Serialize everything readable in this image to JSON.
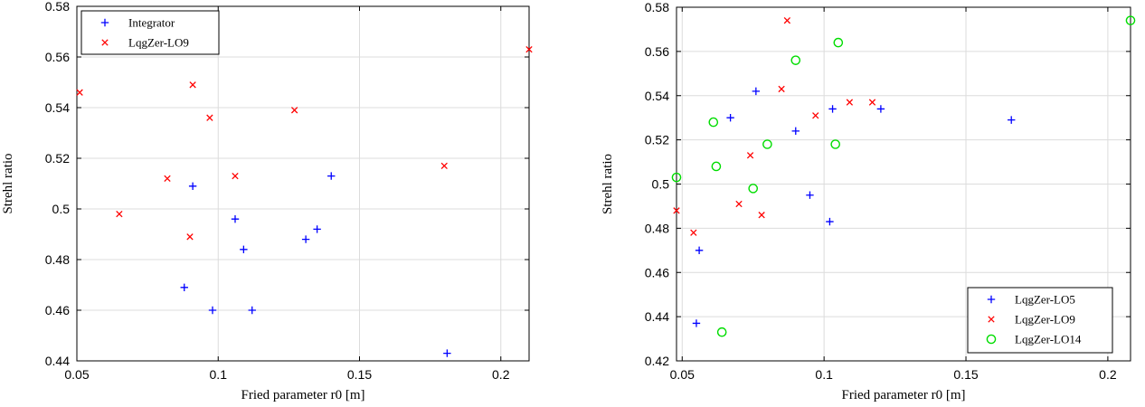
{
  "chart_data": [
    {
      "type": "scatter",
      "title": "",
      "xlabel": "Fried parameter r0 [m]",
      "ylabel": "Strehl ratio",
      "xlim": [
        0.05,
        0.21
      ],
      "ylim": [
        0.44,
        0.58
      ],
      "xticks": [
        0.05,
        0.1,
        0.15,
        0.2
      ],
      "xtick_labels": [
        "0.05",
        "0.1",
        "0.15",
        "0.2"
      ],
      "yticks": [
        0.44,
        0.46,
        0.48,
        0.5,
        0.52,
        0.54,
        0.56,
        0.58
      ],
      "ytick_labels": [
        "0.44",
        "0.46",
        "0.48",
        "0.5",
        "0.52",
        "0.54",
        "0.56",
        "0.58"
      ],
      "grid": true,
      "legend_position": "top-left",
      "series": [
        {
          "name": "Integrator",
          "marker": "plus",
          "color": "#0000ff",
          "x": [
            0.088,
            0.091,
            0.098,
            0.106,
            0.109,
            0.112,
            0.131,
            0.135,
            0.14,
            0.181
          ],
          "y": [
            0.469,
            0.509,
            0.46,
            0.496,
            0.484,
            0.46,
            0.488,
            0.492,
            0.513,
            0.443
          ]
        },
        {
          "name": "LqgZer-LO9",
          "marker": "x",
          "color": "#ff0000",
          "x": [
            0.051,
            0.065,
            0.082,
            0.09,
            0.091,
            0.097,
            0.106,
            0.127,
            0.18,
            0.21
          ],
          "y": [
            0.546,
            0.498,
            0.512,
            0.489,
            0.549,
            0.536,
            0.513,
            0.539,
            0.517,
            0.563
          ]
        }
      ]
    },
    {
      "type": "scatter",
      "title": "",
      "xlabel": "Fried parameter r0 [m]",
      "ylabel": "Strehl ratio",
      "xlim": [
        0.048,
        0.208
      ],
      "ylim": [
        0.42,
        0.58
      ],
      "xticks": [
        0.05,
        0.1,
        0.15,
        0.2
      ],
      "xtick_labels": [
        "0.05",
        "0.1",
        "0.15",
        "0.2"
      ],
      "yticks": [
        0.42,
        0.44,
        0.46,
        0.48,
        0.5,
        0.52,
        0.54,
        0.56,
        0.58
      ],
      "ytick_labels": [
        "0.42",
        "0.44",
        "0.46",
        "0.48",
        "0.5",
        "0.52",
        "0.54",
        "0.56",
        "0.58"
      ],
      "grid": true,
      "legend_position": "bottom-right",
      "series": [
        {
          "name": "LqgZer-LO5",
          "marker": "plus",
          "color": "#0000ff",
          "x": [
            0.055,
            0.056,
            0.067,
            0.076,
            0.09,
            0.095,
            0.102,
            0.103,
            0.12,
            0.166
          ],
          "y": [
            0.437,
            0.47,
            0.53,
            0.542,
            0.524,
            0.495,
            0.483,
            0.534,
            0.534,
            0.529
          ]
        },
        {
          "name": "LqgZer-LO9",
          "marker": "x",
          "color": "#ff0000",
          "x": [
            0.048,
            0.054,
            0.07,
            0.074,
            0.078,
            0.085,
            0.087,
            0.097,
            0.109,
            0.117
          ],
          "y": [
            0.488,
            0.478,
            0.491,
            0.513,
            0.486,
            0.543,
            0.574,
            0.531,
            0.537,
            0.537
          ]
        },
        {
          "name": "LqgZer-LO14",
          "marker": "circle",
          "color": "#00dd00",
          "x": [
            0.048,
            0.061,
            0.062,
            0.064,
            0.075,
            0.08,
            0.09,
            0.104,
            0.105,
            0.208
          ],
          "y": [
            0.503,
            0.528,
            0.508,
            0.433,
            0.498,
            0.518,
            0.556,
            0.518,
            0.564,
            0.574
          ]
        }
      ]
    }
  ]
}
